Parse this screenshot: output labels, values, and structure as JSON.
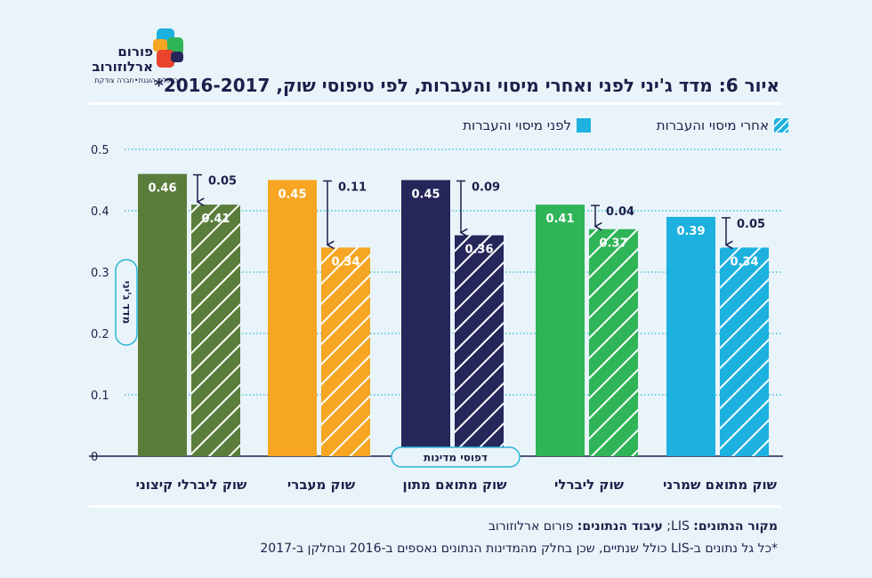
{
  "header": {
    "logo_name_line1": "פורום",
    "logo_name_line2": "ארלוזורוב",
    "logo_tagline": "כלכלה הוגנת•חברה צודקת",
    "title": "איור 6: מדד ג'יני לפני ואחרי מיסוי והעברות, לפי טיפוסי שוק, 2016-2017*"
  },
  "legend": {
    "before_label": "לפני מיסוי והעברות",
    "after_label": "אחרי מיסוי והעברות"
  },
  "footer": {
    "source_label": "מקור הנתונים:",
    "source_value": "LIS;",
    "processing_label": "עיבוד הנתונים:",
    "processing_value": "פורום ארלוזורוב",
    "footnote": "*כל גל נתונים ב-LIS כולל שנתיים, שכן בחלק מהמדינות הנתונים נאספים ב-2016 ובחלקן ב-2017"
  },
  "colors": {
    "extreme_liberal": "#5a7d3c",
    "transitional": "#f6a623",
    "coordinated_middle": "#25265a",
    "liberal": "#2fb457",
    "coordinated_conservative": "#1cb1de",
    "grid": "#2bb5d6",
    "text": "#1d1f4a",
    "legend_swatch": "#1cb1de"
  },
  "chart_data": {
    "type": "bar",
    "title": "איור 6: מדד ג'יני לפני ואחרי מיסוי והעברות, לפי טיפוסי שוק, 2016-2017*",
    "ylabel": "מדד ג'יני",
    "xlabel": "דפוסי מדינות",
    "ylim": [
      0,
      0.5
    ],
    "yticks": [
      "0",
      "0.1",
      "0.2",
      "0.3",
      "0.4",
      "0.5"
    ],
    "categories": [
      "שוק ליברלי קיצוני",
      "שוק מעברי",
      "שוק מתואם מתון",
      "שוק ליברלי",
      "שוק מתואם שמרני"
    ],
    "series": [
      {
        "name": "לפני מיסוי והעברות",
        "values": [
          0.46,
          0.45,
          0.45,
          0.41,
          0.39
        ],
        "labels": [
          "0.46",
          "0.45",
          "0.45",
          "0.41",
          "0.39"
        ]
      },
      {
        "name": "אחרי מיסוי והעברות",
        "values": [
          0.41,
          0.34,
          0.36,
          0.37,
          0.34
        ],
        "labels": [
          "0.41",
          "0.34",
          "0.36",
          "0.37",
          "0.34"
        ]
      }
    ],
    "differences": [
      "0.05",
      "0.11",
      "0.09",
      "0.04",
      "0.05"
    ],
    "grid": true,
    "legend_position": "top-right"
  }
}
